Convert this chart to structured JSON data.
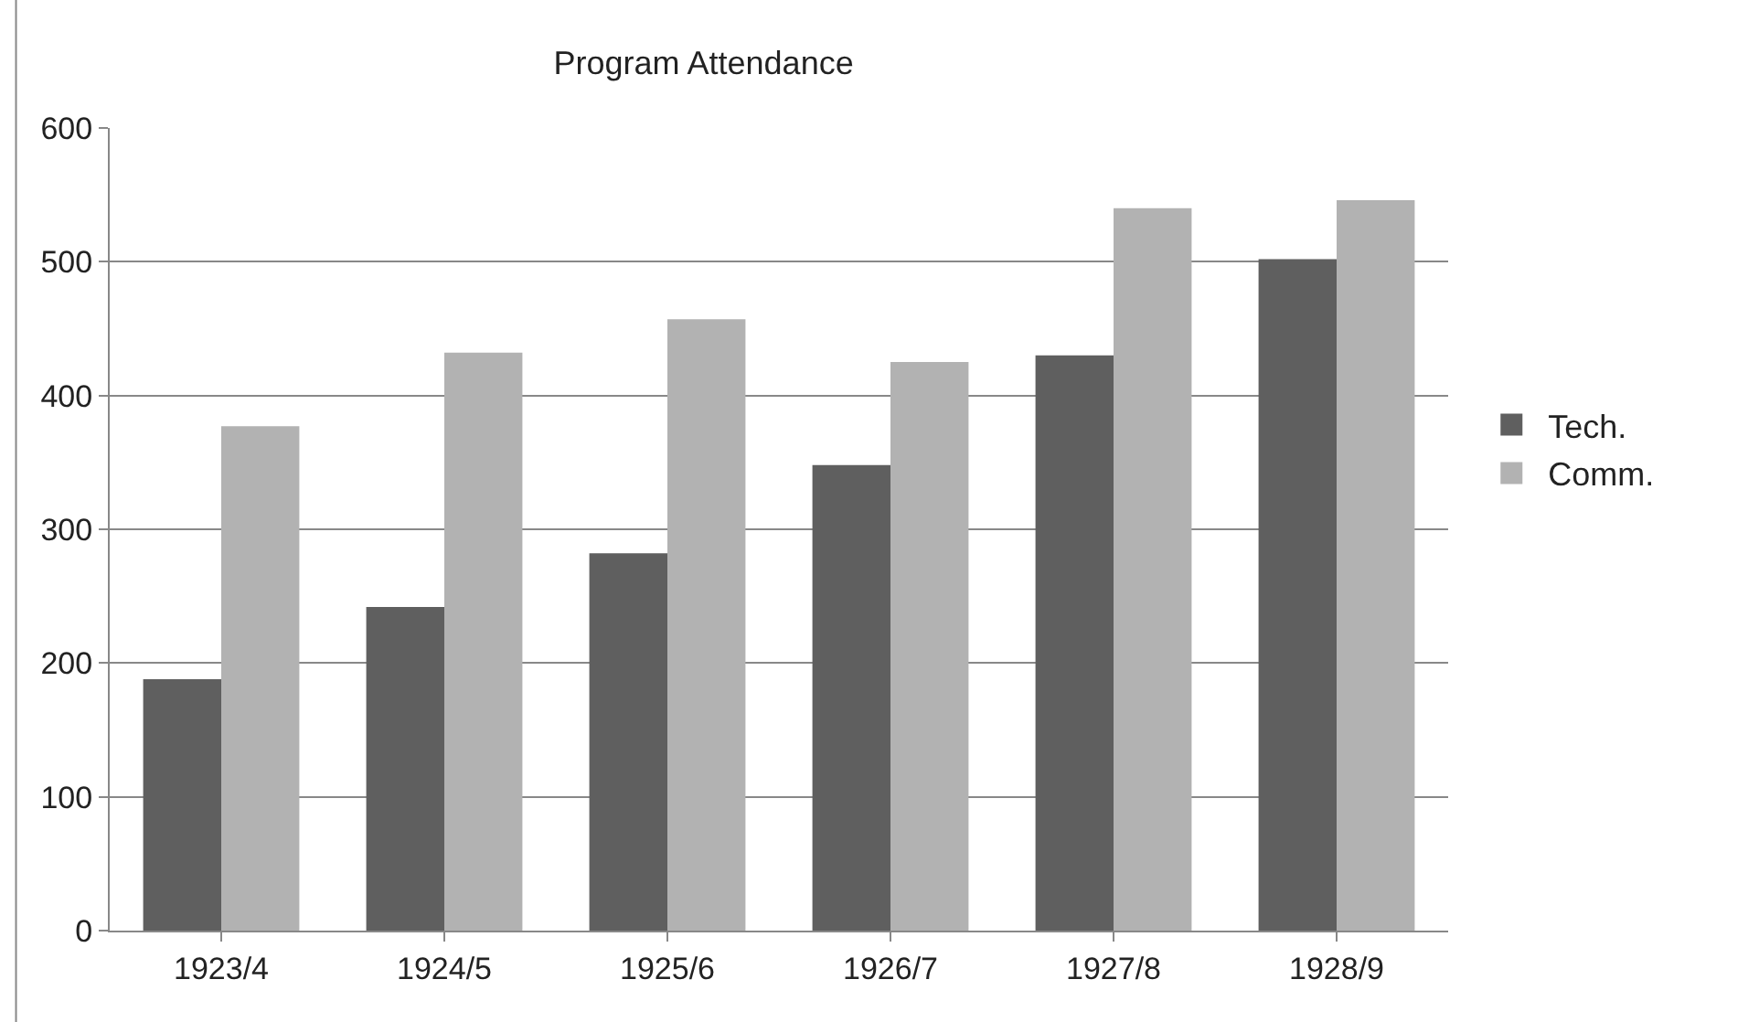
{
  "chart_data": {
    "type": "bar",
    "title": "Program Attendance",
    "categories": [
      "1923/4",
      "1924/5",
      "1925/6",
      "1926/7",
      "1927/8",
      "1928/9"
    ],
    "series": [
      {
        "name": "Tech.",
        "color": "#5f5f5f",
        "values": [
          188,
          242,
          282,
          348,
          430,
          502
        ]
      },
      {
        "name": "Comm.",
        "color": "#b2b2b2",
        "values": [
          377,
          432,
          457,
          425,
          540,
          546
        ]
      }
    ],
    "ylim": [
      0,
      600
    ],
    "yticks": [
      0,
      100,
      200,
      300,
      400,
      500,
      600
    ],
    "grid": "y",
    "legend": "right"
  }
}
